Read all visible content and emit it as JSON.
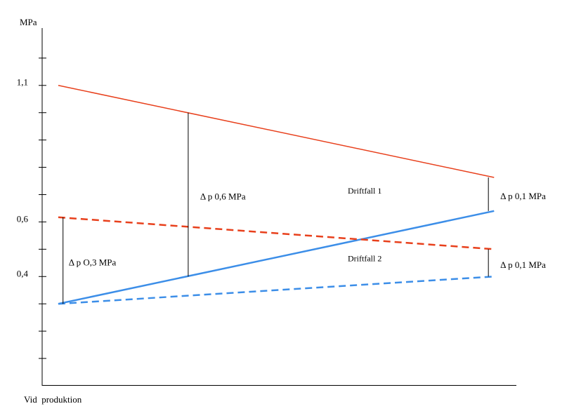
{
  "chart_data": {
    "type": "line",
    "y_label": "MPa",
    "x_label": "Vid  produktion",
    "xlim": [
      0,
      100
    ],
    "ylim": [
      0,
      1.31
    ],
    "yticks": [
      {
        "value": 1.1,
        "label": "1,1"
      },
      {
        "value": 0.6,
        "label": "0,6"
      },
      {
        "value": 0.4,
        "label": "0,4"
      }
    ],
    "yminor": [
      0.1,
      0.2,
      0.3,
      0.5,
      0.7,
      0.8,
      0.9,
      1.0,
      1.2
    ],
    "x": [
      3.4,
      95.3
    ],
    "cases": [
      {
        "name": "Driftfall 1",
        "dashed": false,
        "lines": [
          {
            "color": "#e8401c",
            "width": 1.5,
            "values": [
              1.1,
              0.763
            ]
          },
          {
            "color": "#3c8ee8",
            "width": 2.5,
            "values": [
              0.3,
              0.64
            ]
          }
        ]
      },
      {
        "name": "Driftfall 2",
        "dashed": true,
        "lines": [
          {
            "color": "#e8401c",
            "width": 2.5,
            "values": [
              0.617,
              0.5
            ]
          },
          {
            "color": "#3c8ee8",
            "width": 2.5,
            "values": [
              0.3,
              0.4
            ]
          }
        ]
      }
    ],
    "annotations": [
      {
        "label": "Δ p O,3 MPa",
        "x": 4.4,
        "from": 0.3,
        "to": 0.617
      },
      {
        "label": "Δ p 0,6 MPa",
        "x": 30.8,
        "from": 0.4,
        "to": 1.0
      },
      {
        "label": "Δ p 0,1 MPa",
        "x": 94.1,
        "from": 0.64,
        "to": 0.763
      },
      {
        "label": "Δ p 0,1 MPa",
        "x": 94.1,
        "from": 0.4,
        "to": 0.5
      }
    ]
  }
}
